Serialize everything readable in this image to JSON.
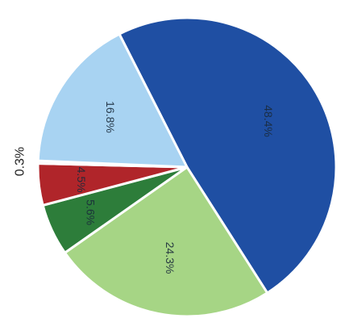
{
  "chart_data": {
    "type": "pie",
    "slices": [
      {
        "label": "48.4%",
        "value": 48.4,
        "color": "#1f4fa3"
      },
      {
        "label": "24.3%",
        "value": 24.3,
        "color": "#a6d585"
      },
      {
        "label": "5.6%",
        "value": 5.6,
        "color": "#2d7d3a"
      },
      {
        "label": "4.5%",
        "value": 4.5,
        "color": "#b0252a"
      },
      {
        "label": "0.3%",
        "value": 0.3,
        "color": "#e8eef4"
      },
      {
        "label": "16.8%",
        "value": 16.8,
        "color": "#a8d3f2"
      }
    ],
    "title": "",
    "legend": "none"
  }
}
